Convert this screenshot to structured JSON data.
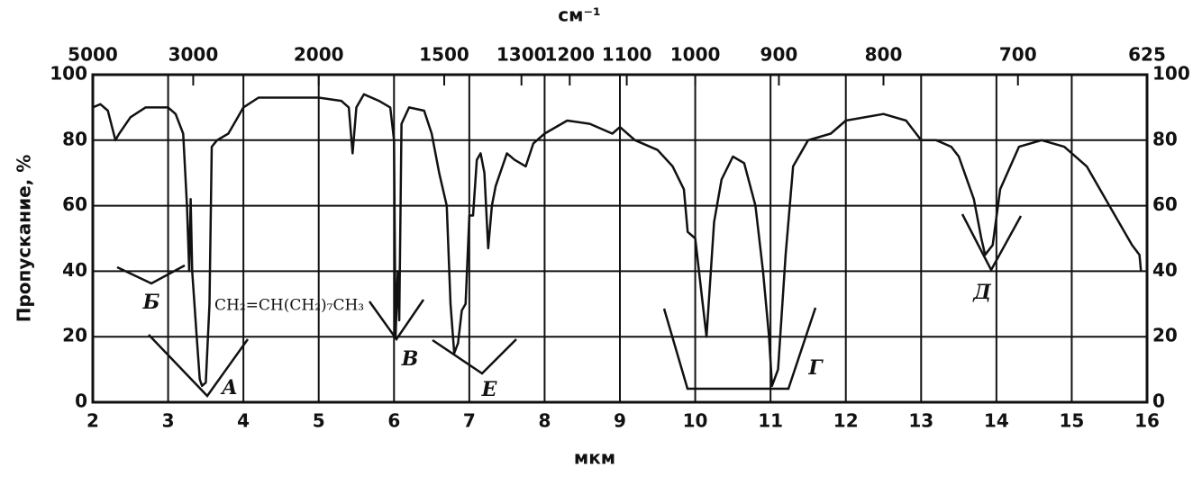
{
  "chart_data": {
    "type": "line",
    "x_label": "мкм",
    "y_label": "Пропускание, %",
    "x2_label": "см⁻¹",
    "x": [
      2.0,
      2.1,
      2.2,
      2.3,
      2.35,
      2.5,
      2.7,
      3.0,
      3.1,
      3.2,
      3.25,
      3.28,
      3.3,
      3.32,
      3.38,
      3.42,
      3.45,
      3.5,
      3.55,
      3.58,
      3.65,
      3.8,
      3.9,
      4.0,
      4.2,
      4.5,
      5.0,
      5.3,
      5.4,
      5.45,
      5.5,
      5.6,
      5.8,
      5.95,
      6.0,
      6.02,
      6.05,
      6.07,
      6.1,
      6.2,
      6.4,
      6.5,
      6.6,
      6.7,
      6.75,
      6.8,
      6.85,
      6.9,
      6.95,
      7.0,
      7.05,
      7.1,
      7.15,
      7.2,
      7.25,
      7.3,
      7.35,
      7.5,
      7.6,
      7.75,
      7.85,
      8.0,
      8.3,
      8.6,
      8.9,
      9.0,
      9.2,
      9.5,
      9.7,
      9.85,
      9.9,
      10.0,
      10.1,
      10.15,
      10.25,
      10.35,
      10.5,
      10.65,
      10.8,
      10.9,
      10.98,
      11.02,
      11.1,
      11.2,
      11.3,
      11.5,
      11.8,
      12.0,
      12.5,
      12.8,
      13.0,
      13.2,
      13.4,
      13.5,
      13.7,
      13.8,
      13.85,
      13.95,
      14.05,
      14.3,
      14.6,
      14.9,
      15.2,
      15.5,
      15.8,
      15.9,
      15.92
    ],
    "values": [
      90,
      91,
      89,
      80,
      82,
      87,
      90,
      90,
      88,
      82,
      60,
      40,
      62,
      40,
      20,
      7,
      5,
      6,
      30,
      78,
      80,
      82,
      86,
      90,
      93,
      93,
      93,
      92,
      90,
      76,
      90,
      94,
      92,
      90,
      80,
      20,
      40,
      25,
      85,
      90,
      89,
      82,
      70,
      60,
      30,
      15,
      18,
      28,
      30,
      57,
      57,
      74,
      76,
      70,
      47,
      60,
      66,
      76,
      74,
      72,
      79,
      82,
      86,
      85,
      82,
      84,
      80,
      77,
      72,
      65,
      52,
      50,
      30,
      20,
      55,
      68,
      75,
      73,
      60,
      40,
      20,
      5,
      10,
      45,
      72,
      80,
      82,
      86,
      88,
      86,
      80,
      80,
      78,
      75,
      62,
      50,
      45,
      48,
      65,
      78,
      80,
      78,
      72,
      60,
      48,
      45,
      40
    ],
    "color": "#111111",
    "xlim": [
      2,
      16
    ],
    "xticks": [
      2,
      3,
      4,
      5,
      6,
      7,
      8,
      9,
      10,
      11,
      12,
      13,
      14,
      15,
      16
    ],
    "ylim": [
      0,
      100
    ],
    "yticks": [
      0,
      20,
      40,
      60,
      80,
      100
    ],
    "x2ticks": [
      5000,
      3000,
      2000,
      1500,
      1300,
      1200,
      1100,
      1000,
      900,
      800,
      700,
      625
    ],
    "grid": true,
    "annotations": [
      "Б",
      "А",
      "В",
      "Е",
      "Г",
      "Д",
      "CH₂=CH(CH₂)₇CH₃"
    ]
  }
}
